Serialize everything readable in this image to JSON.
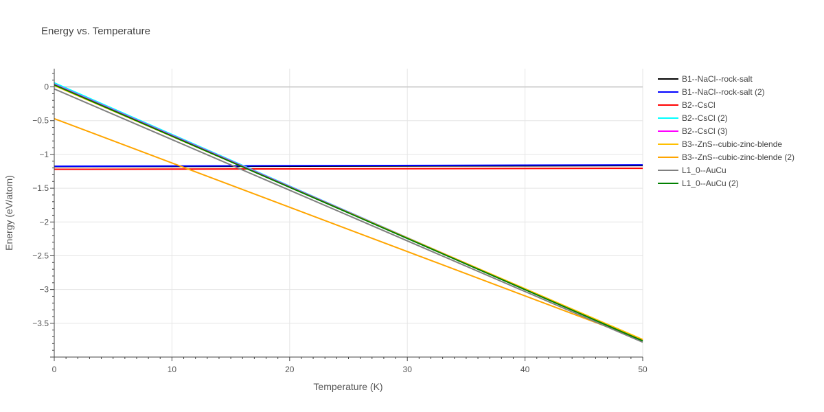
{
  "chart_data": {
    "type": "line",
    "title": "Energy vs. Temperature",
    "xlabel": "Temperature (K)",
    "ylabel": "Energy (eV/atom)",
    "xlim": [
      0,
      50
    ],
    "ylim": [
      -4.0,
      0.27
    ],
    "x_ticks": [
      0,
      10,
      20,
      30,
      40,
      50
    ],
    "y_ticks": [
      0,
      -0.5,
      -1,
      -1.5,
      -2,
      -2.5,
      -3,
      -3.5
    ],
    "x_tick_labels": [
      "0",
      "10",
      "20",
      "30",
      "40",
      "50"
    ],
    "y_tick_labels": [
      "0",
      "−0.5",
      "−1",
      "−1.5",
      "−2",
      "−2.5",
      "−3",
      "−3.5"
    ],
    "grid": true,
    "legend_position": "right",
    "series": [
      {
        "name": "B1--NaCl--rock-salt",
        "color": "#000000",
        "x": [
          0,
          50
        ],
        "y": [
          -1.18,
          -1.165
        ]
      },
      {
        "name": "B1--NaCl--rock-salt (2)",
        "color": "#0000ff",
        "x": [
          0,
          50
        ],
        "y": [
          -1.175,
          -1.155
        ]
      },
      {
        "name": "B2--CsCl",
        "color": "#ff0000",
        "x": [
          0,
          50
        ],
        "y": [
          -1.22,
          -1.205
        ]
      },
      {
        "name": "B2--CsCl (2)",
        "color": "#00ffff",
        "x": [
          0,
          50
        ],
        "y": [
          0.06,
          -3.76
        ]
      },
      {
        "name": "B2--CsCl (3)",
        "color": "#ff00ff",
        "x": [
          0,
          50
        ],
        "y": [
          0.04,
          -3.75
        ]
      },
      {
        "name": "B3--ZnS--cubic-zinc-blende",
        "color": "#ffc000",
        "x": [
          0,
          50
        ],
        "y": [
          0.02,
          -3.74
        ]
      },
      {
        "name": "B3--ZnS--cubic-zinc-blende (2)",
        "color": "#ffa500",
        "x": [
          0,
          50
        ],
        "y": [
          -0.47,
          -3.75
        ]
      },
      {
        "name": "L1_0--AuCu",
        "color": "#808080",
        "x": [
          0,
          50
        ],
        "y": [
          -0.03,
          -3.78
        ]
      },
      {
        "name": "L1_0--AuCu (2)",
        "color": "#008000",
        "x": [
          0,
          50
        ],
        "y": [
          0.03,
          -3.76
        ]
      }
    ]
  }
}
